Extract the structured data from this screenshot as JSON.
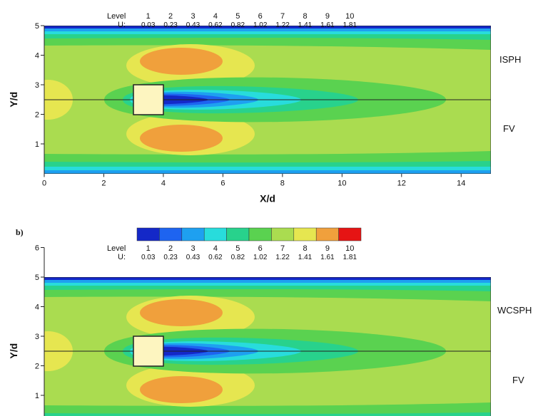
{
  "legend": {
    "level_label": "Level",
    "levels": [
      1,
      2,
      3,
      4,
      5,
      6,
      7,
      8,
      9,
      10
    ],
    "u_label": "U:",
    "u_values": [
      0.03,
      0.23,
      0.43,
      0.62,
      0.82,
      1.02,
      1.22,
      1.41,
      1.61,
      1.81
    ],
    "colors": [
      "#1428c8",
      "#1e64f0",
      "#1ea0f0",
      "#28dcdc",
      "#28d28c",
      "#5ad250",
      "#aadc50",
      "#e6e650",
      "#f0a03c",
      "#e61414"
    ]
  },
  "panels": [
    {
      "method": "ISPH",
      "reference": "FV",
      "x_label": "X/d",
      "y_label": "Y/d",
      "xticks": [
        0,
        2,
        4,
        6,
        8,
        10,
        12,
        14
      ],
      "yticks": [
        1,
        2,
        3,
        4,
        5
      ]
    },
    {
      "label": "b)",
      "method": "WCSPH",
      "reference": "FV",
      "y_label": "Y/d",
      "yticks": [
        1,
        2,
        3,
        4,
        5,
        6
      ]
    }
  ]
}
